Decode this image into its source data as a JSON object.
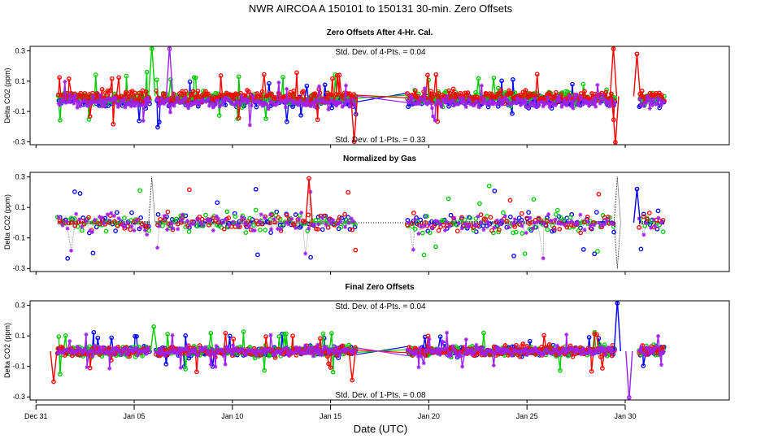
{
  "figure_title": "NWR   AIRCOA A   150101 to 150131   30-min. Zero Offsets",
  "x_axis_label": "Date (UTC)",
  "chart_data": [
    {
      "type": "scatter",
      "title": "Zero Offsets After 4-Hr. Cal.",
      "ylabel": "Delta CO2 (ppm)",
      "ylim": [
        -0.32,
        0.33
      ],
      "xlim": [
        -0.3,
        35.3
      ],
      "yticks": [
        "-0.3",
        "-0.1",
        "0.1",
        "0.3"
      ],
      "annotation_top": "Std. Dev. of 4-Pts. =  0.04",
      "annotation_bottom": "Std. Dev. of 1-Pts. =  0.33",
      "mean_line": false,
      "series": [
        {
          "name": "blue",
          "color": "#0000ff",
          "marker": "circle",
          "spread": 0.05,
          "bias": -0.03
        },
        {
          "name": "green",
          "color": "#00cc00",
          "marker": "circle",
          "spread": 0.055,
          "bias": -0.01
        },
        {
          "name": "red",
          "color": "#ff0000",
          "marker": "circle",
          "spread": 0.055,
          "bias": 0.0
        },
        {
          "name": "purple",
          "color": "#a020f0",
          "marker": "star",
          "spread": 0.05,
          "bias": -0.04
        }
      ],
      "excursions": [
        {
          "x": 5.9,
          "y": 0.33,
          "series": "green"
        },
        {
          "x": 6.8,
          "y": 0.33,
          "series": "purple"
        },
        {
          "x": 16.2,
          "y": -0.3,
          "series": "red"
        },
        {
          "x": 29.4,
          "y": 0.33,
          "series": "red"
        },
        {
          "x": 29.5,
          "y": -0.32,
          "series": "red"
        },
        {
          "x": 30.6,
          "y": 0.28,
          "series": "red"
        }
      ]
    },
    {
      "type": "scatter",
      "title": "Normalized by Gas",
      "ylabel": "Delta CO2 (ppm)",
      "ylim": [
        -0.32,
        0.33
      ],
      "xlim": [
        -0.3,
        35.3
      ],
      "yticks": [
        "-0.3",
        "-0.1",
        "0.1",
        "0.3"
      ],
      "annotation_top": "",
      "annotation_bottom": "",
      "mean_line": true,
      "series": [
        {
          "name": "blue",
          "color": "#0000ff",
          "marker": "circle",
          "spread": 0.08,
          "bias": 0.0
        },
        {
          "name": "green",
          "color": "#00cc00",
          "marker": "circle",
          "spread": 0.08,
          "bias": 0.0
        },
        {
          "name": "red",
          "color": "#ff0000",
          "marker": "circle",
          "spread": 0.08,
          "bias": 0.0
        },
        {
          "name": "purple",
          "color": "#a020f0",
          "marker": "star",
          "spread": 0.08,
          "bias": 0.0
        }
      ],
      "excursions": [
        {
          "x": 5.9,
          "y": 0.3,
          "series": "black"
        },
        {
          "x": 13.9,
          "y": 0.29,
          "series": "red"
        },
        {
          "x": 29.6,
          "y": 0.3,
          "series": "black"
        },
        {
          "x": 29.6,
          "y": -0.3,
          "series": "black"
        },
        {
          "x": 30.6,
          "y": 0.22,
          "series": "blue"
        }
      ]
    },
    {
      "type": "scatter",
      "title": "Final Zero Offsets",
      "ylabel": "Delta CO2 (ppm)",
      "ylim": [
        -0.32,
        0.33
      ],
      "xlim": [
        -0.3,
        35.3
      ],
      "yticks": [
        "-0.3",
        "-0.1",
        "0.1",
        "0.3"
      ],
      "annotation_top": "Std. Dev. of 4-Pts. =  0.04",
      "annotation_bottom": "Std. Dev. of 1-Pts. =  0.08",
      "mean_line": false,
      "series": [
        {
          "name": "blue",
          "color": "#0000ff",
          "marker": "circle",
          "spread": 0.04,
          "bias": 0.0
        },
        {
          "name": "green",
          "color": "#00cc00",
          "marker": "circle",
          "spread": 0.045,
          "bias": 0.0
        },
        {
          "name": "red",
          "color": "#ff0000",
          "marker": "circle",
          "spread": 0.045,
          "bias": 0.0
        },
        {
          "name": "purple",
          "color": "#a020f0",
          "marker": "star",
          "spread": 0.04,
          "bias": 0.0
        }
      ],
      "excursions": [
        {
          "x": 0.9,
          "y": -0.2,
          "series": "red"
        },
        {
          "x": 6.0,
          "y": 0.16,
          "series": "green"
        },
        {
          "x": 16.1,
          "y": -0.19,
          "series": "red"
        },
        {
          "x": 29.6,
          "y": 0.33,
          "series": "blue"
        },
        {
          "x": 30.2,
          "y": -0.32,
          "series": "purple"
        }
      ]
    }
  ],
  "x_ticks": [
    {
      "value": 0,
      "label": "Dec 31"
    },
    {
      "value": 5,
      "label": "Jan 05"
    },
    {
      "value": 10,
      "label": "Jan 10"
    },
    {
      "value": 15,
      "label": "Jan 15"
    },
    {
      "value": 20,
      "label": "Jan 20"
    },
    {
      "value": 25,
      "label": "Jan 25"
    },
    {
      "value": 30,
      "label": "Jan 30"
    }
  ],
  "data_segments": [
    [
      1.1,
      5.8
    ],
    [
      6.1,
      16.3
    ],
    [
      18.9,
      29.5
    ],
    [
      30.7,
      32.0
    ]
  ],
  "gap_connectors": [
    [
      16.3,
      18.9
    ]
  ]
}
